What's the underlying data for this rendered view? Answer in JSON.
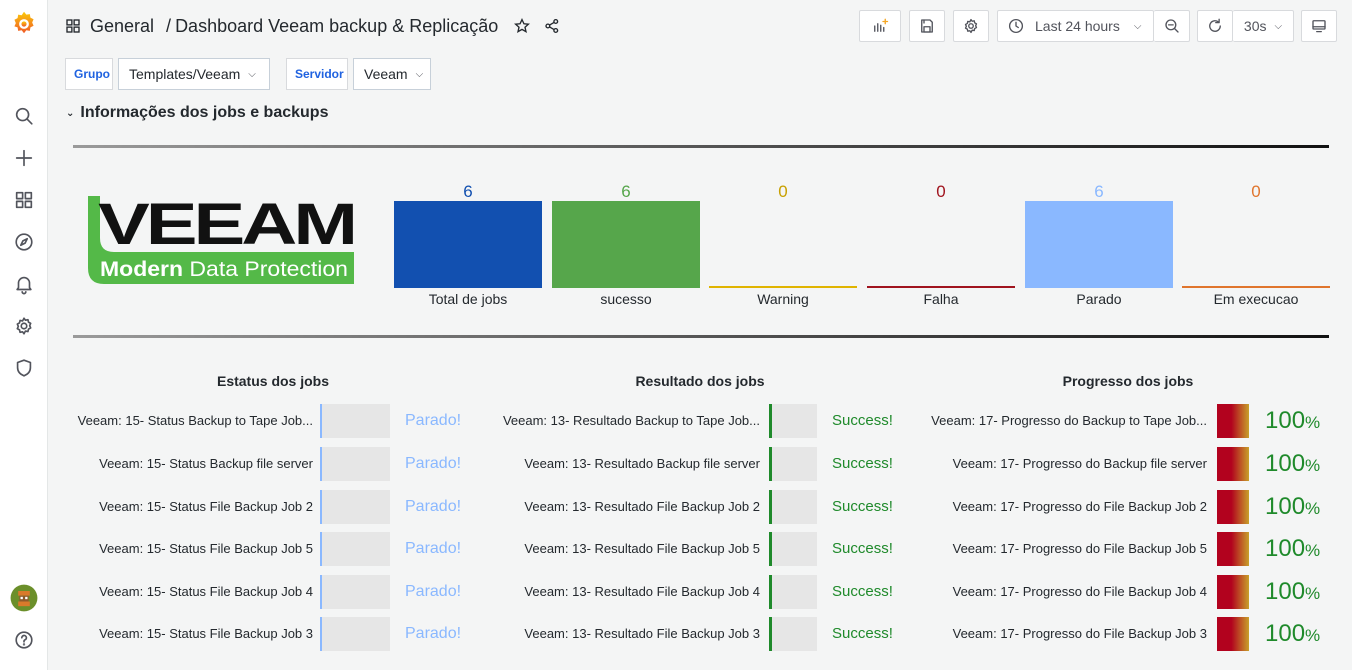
{
  "header": {
    "folder": "General",
    "separator": "/",
    "title": "Dashboard Veeam backup & Replicação",
    "time_range": "Last 24 hours",
    "refresh": "30s"
  },
  "variables": [
    {
      "label": "Grupo",
      "value": "Templates/Veeam"
    },
    {
      "label": "Servidor",
      "value": "Veeam"
    }
  ],
  "row_title": "Informações dos jobs e backups",
  "logo": {
    "brand": "VEEAM",
    "tagline": "Modern Data Protection",
    "color": "#54b948"
  },
  "stats": [
    {
      "label": "Total de jobs",
      "value": "6",
      "color": "#1250b0",
      "text_color": "#1250b0"
    },
    {
      "label": "sucesso",
      "value": "6",
      "color": "#56a64b",
      "text_color": "#56a64b"
    },
    {
      "label": "Warning",
      "value": "0",
      "color": "#e0b400",
      "text_color": "#c8a000"
    },
    {
      "label": "Falha",
      "value": "0",
      "color": "#a0141e",
      "text_color": "#a0141e"
    },
    {
      "label": "Parado",
      "value": "6",
      "color": "#8ab8ff",
      "text_color": "#8ab8ff"
    },
    {
      "label": "Em execucao",
      "value": "0",
      "color": "#e0752d",
      "text_color": "#e0752d"
    }
  ],
  "status_panel": {
    "title": "Estatus dos jobs",
    "rows": [
      {
        "name": "Veeam: 15- Status Backup to Tape Job...",
        "value": "Parado!"
      },
      {
        "name": "Veeam: 15- Status Backup file server",
        "value": "Parado!"
      },
      {
        "name": "Veeam: 15- Status File Backup Job 2",
        "value": "Parado!"
      },
      {
        "name": "Veeam: 15- Status File Backup Job 5",
        "value": "Parado!"
      },
      {
        "name": "Veeam: 15- Status File Backup Job 4",
        "value": "Parado!"
      },
      {
        "name": "Veeam: 15- Status File Backup Job 3",
        "value": "Parado!"
      }
    ]
  },
  "result_panel": {
    "title": "Resultado dos jobs",
    "rows": [
      {
        "name": "Veeam: 13- Resultado Backup to Tape Job...",
        "value": "Success!"
      },
      {
        "name": "Veeam: 13- Resultado Backup file server",
        "value": "Success!"
      },
      {
        "name": "Veeam: 13- Resultado File Backup Job 2",
        "value": "Success!"
      },
      {
        "name": "Veeam: 13- Resultado File Backup Job 5",
        "value": "Success!"
      },
      {
        "name": "Veeam: 13- Resultado File Backup Job 4",
        "value": "Success!"
      },
      {
        "name": "Veeam: 13- Resultado File Backup Job 3",
        "value": "Success!"
      }
    ]
  },
  "progress_panel": {
    "title": "Progresso dos jobs",
    "unit": "%",
    "rows": [
      {
        "name": "Veeam: 17- Progresso do Backup to Tape Job...",
        "value": "100"
      },
      {
        "name": "Veeam: 17- Progresso do Backup file server",
        "value": "100"
      },
      {
        "name": "Veeam: 17- Progresso do File Backup Job 2",
        "value": "100"
      },
      {
        "name": "Veeam: 17- Progresso do File Backup Job 5",
        "value": "100"
      },
      {
        "name": "Veeam: 17- Progresso do File Backup Job 4",
        "value": "100"
      },
      {
        "name": "Veeam: 17- Progresso do File Backup Job 3",
        "value": "100"
      }
    ]
  }
}
